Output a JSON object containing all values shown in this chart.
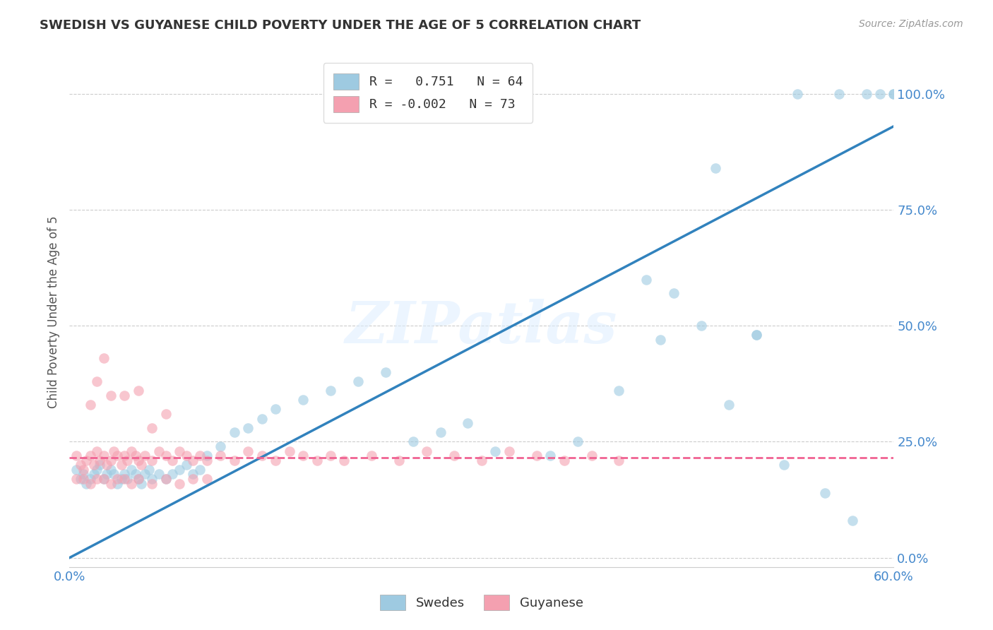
{
  "title": "SWEDISH VS GUYANESE CHILD POVERTY UNDER THE AGE OF 5 CORRELATION CHART",
  "source": "Source: ZipAtlas.com",
  "ylabel": "Child Poverty Under the Age of 5",
  "xlim": [
    0.0,
    0.6
  ],
  "ylim": [
    -0.02,
    1.08
  ],
  "yticks": [
    0.0,
    0.25,
    0.5,
    0.75,
    1.0
  ],
  "ytick_labels": [
    "0.0%",
    "25.0%",
    "50.0%",
    "75.0%",
    "100.0%"
  ],
  "xtick_vals": [
    0.0,
    0.1,
    0.2,
    0.3,
    0.4,
    0.5,
    0.6
  ],
  "xtick_labels": [
    "0.0%",
    "",
    "",
    "",
    "",
    "",
    "60.0%"
  ],
  "blue_R": 0.751,
  "blue_N": 64,
  "pink_R": -0.002,
  "pink_N": 73,
  "blue_color": "#9ecae1",
  "pink_color": "#f4a0b0",
  "blue_line_color": "#3182bd",
  "pink_line_color": "#f06292",
  "grid_color": "#cccccc",
  "title_color": "#333333",
  "axis_label_color": "#555555",
  "tick_label_color": "#4488cc",
  "watermark": "ZIPatlas",
  "blue_line_x0": 0.0,
  "blue_line_y0": 0.0,
  "blue_line_x1": 0.6,
  "blue_line_y1": 0.93,
  "pink_line_x0": 0.0,
  "pink_line_y0": 0.215,
  "pink_line_x1": 0.6,
  "pink_line_y1": 0.215,
  "blue_scatter_x": [
    0.005,
    0.008,
    0.01,
    0.012,
    0.015,
    0.018,
    0.02,
    0.022,
    0.025,
    0.027,
    0.03,
    0.032,
    0.035,
    0.038,
    0.04,
    0.042,
    0.045,
    0.048,
    0.05,
    0.052,
    0.055,
    0.058,
    0.06,
    0.065,
    0.07,
    0.075,
    0.08,
    0.085,
    0.09,
    0.095,
    0.1,
    0.11,
    0.12,
    0.13,
    0.14,
    0.15,
    0.17,
    0.19,
    0.21,
    0.23,
    0.25,
    0.27,
    0.29,
    0.31,
    0.35,
    0.37,
    0.4,
    0.43,
    0.46,
    0.48,
    0.5,
    0.52,
    0.55,
    0.57,
    0.42,
    0.44,
    0.47,
    0.5,
    0.53,
    0.56,
    0.58,
    0.59,
    0.6,
    0.6
  ],
  "blue_scatter_y": [
    0.19,
    0.17,
    0.18,
    0.16,
    0.17,
    0.18,
    0.19,
    0.2,
    0.17,
    0.18,
    0.19,
    0.18,
    0.16,
    0.17,
    0.18,
    0.17,
    0.19,
    0.18,
    0.17,
    0.16,
    0.18,
    0.19,
    0.17,
    0.18,
    0.17,
    0.18,
    0.19,
    0.2,
    0.18,
    0.19,
    0.22,
    0.24,
    0.27,
    0.28,
    0.3,
    0.32,
    0.34,
    0.36,
    0.38,
    0.4,
    0.25,
    0.27,
    0.29,
    0.23,
    0.22,
    0.25,
    0.36,
    0.47,
    0.5,
    0.33,
    0.48,
    0.2,
    0.14,
    0.08,
    0.6,
    0.57,
    0.84,
    0.48,
    1.0,
    1.0,
    1.0,
    1.0,
    1.0,
    1.0
  ],
  "pink_scatter_x": [
    0.005,
    0.008,
    0.01,
    0.012,
    0.015,
    0.018,
    0.02,
    0.022,
    0.025,
    0.027,
    0.03,
    0.032,
    0.035,
    0.038,
    0.04,
    0.042,
    0.045,
    0.048,
    0.05,
    0.052,
    0.055,
    0.06,
    0.065,
    0.07,
    0.075,
    0.08,
    0.085,
    0.09,
    0.095,
    0.1,
    0.11,
    0.12,
    0.13,
    0.14,
    0.15,
    0.16,
    0.17,
    0.18,
    0.19,
    0.2,
    0.22,
    0.24,
    0.26,
    0.28,
    0.3,
    0.32,
    0.34,
    0.36,
    0.38,
    0.4,
    0.005,
    0.01,
    0.015,
    0.02,
    0.025,
    0.03,
    0.035,
    0.04,
    0.045,
    0.05,
    0.06,
    0.07,
    0.08,
    0.09,
    0.1,
    0.015,
    0.02,
    0.025,
    0.03,
    0.04,
    0.05,
    0.06,
    0.07
  ],
  "pink_scatter_y": [
    0.22,
    0.2,
    0.19,
    0.21,
    0.22,
    0.2,
    0.23,
    0.21,
    0.22,
    0.2,
    0.21,
    0.23,
    0.22,
    0.2,
    0.22,
    0.21,
    0.23,
    0.22,
    0.21,
    0.2,
    0.22,
    0.21,
    0.23,
    0.22,
    0.21,
    0.23,
    0.22,
    0.21,
    0.22,
    0.21,
    0.22,
    0.21,
    0.23,
    0.22,
    0.21,
    0.23,
    0.22,
    0.21,
    0.22,
    0.21,
    0.22,
    0.21,
    0.23,
    0.22,
    0.21,
    0.23,
    0.22,
    0.21,
    0.22,
    0.21,
    0.17,
    0.17,
    0.16,
    0.17,
    0.17,
    0.16,
    0.17,
    0.17,
    0.16,
    0.17,
    0.16,
    0.17,
    0.16,
    0.17,
    0.17,
    0.33,
    0.38,
    0.43,
    0.35,
    0.35,
    0.36,
    0.28,
    0.31
  ]
}
